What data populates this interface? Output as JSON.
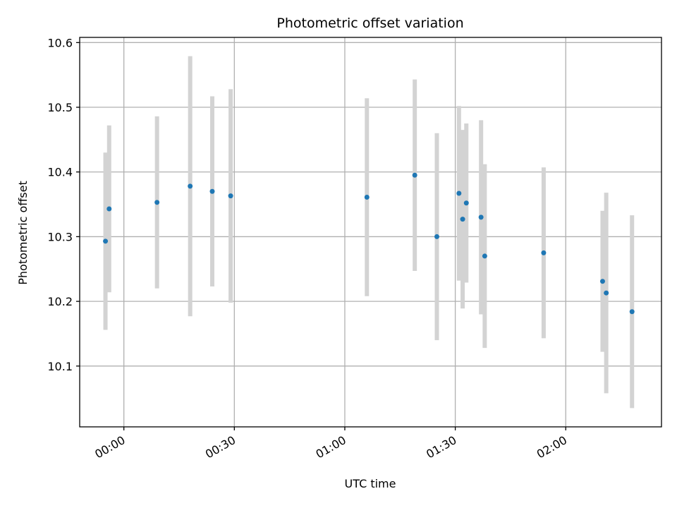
{
  "chart_data": {
    "type": "scatter",
    "title": "Photometric offset variation",
    "xlabel": "UTC time",
    "ylabel": "Photometric offset",
    "grid": true,
    "xlim": [
      "23:48",
      "02:26"
    ],
    "ylim": [
      10.006,
      10.608
    ],
    "x_ticks": [
      "00:00",
      "00:30",
      "01:00",
      "01:30",
      "02:00"
    ],
    "y_ticks": [
      10.1,
      10.2,
      10.3,
      10.4,
      10.5,
      10.6
    ],
    "y_tick_labels": [
      "10.1",
      "10.2",
      "10.3",
      "10.4",
      "10.5",
      "10.6"
    ],
    "colors": {
      "point": "#1f77b4",
      "errorbar": "#d3d3d3",
      "grid": "#b0b0b0"
    },
    "points": [
      {
        "x": "23:55",
        "y": 10.293,
        "err": 0.137
      },
      {
        "x": "23:56",
        "y": 10.343,
        "err": 0.129
      },
      {
        "x": "00:09",
        "y": 10.353,
        "err": 0.133
      },
      {
        "x": "00:18",
        "y": 10.378,
        "err": 0.201
      },
      {
        "x": "00:24",
        "y": 10.37,
        "err": 0.147
      },
      {
        "x": "00:29",
        "y": 10.363,
        "err": 0.165
      },
      {
        "x": "01:06",
        "y": 10.361,
        "err": 0.153
      },
      {
        "x": "01:19",
        "y": 10.395,
        "err": 0.148
      },
      {
        "x": "01:25",
        "y": 10.3,
        "err": 0.16
      },
      {
        "x": "01:31",
        "y": 10.367,
        "err": 0.135
      },
      {
        "x": "01:32",
        "y": 10.327,
        "err": 0.138
      },
      {
        "x": "01:33",
        "y": 10.352,
        "err": 0.123
      },
      {
        "x": "01:37",
        "y": 10.33,
        "err": 0.15
      },
      {
        "x": "01:38",
        "y": 10.27,
        "err": 0.142
      },
      {
        "x": "01:54",
        "y": 10.275,
        "err": 0.132
      },
      {
        "x": "02:10",
        "y": 10.231,
        "err": 0.109
      },
      {
        "x": "02:11",
        "y": 10.213,
        "err": 0.155
      },
      {
        "x": "02:18",
        "y": 10.184,
        "err": 0.149
      }
    ]
  }
}
